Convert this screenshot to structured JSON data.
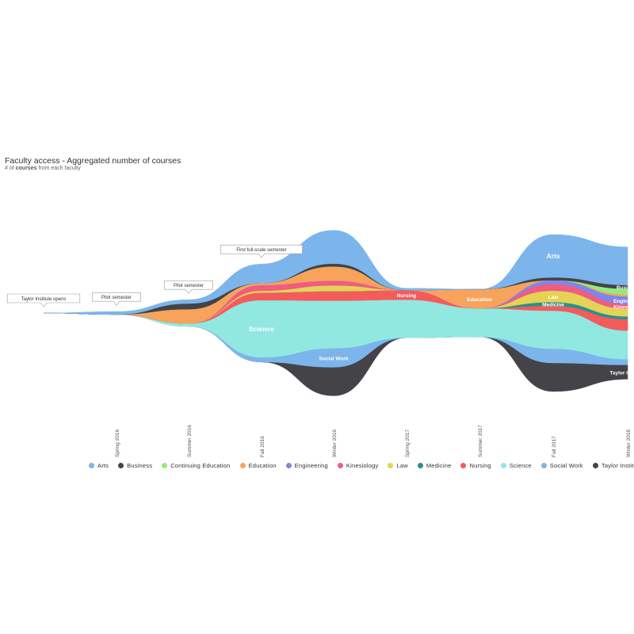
{
  "chart_data": {
    "type": "area",
    "title": "Faculty access - Aggregated number of courses",
    "subtitle_prefix": "# of",
    "subtitle_strong": "courses",
    "subtitle_suffix": "from each faculty",
    "x": [
      "Spring 2016",
      "Summer 2016",
      "Fall 2016",
      "Winter 2016",
      "Spring 2017",
      "Summer 2017",
      "Fall 2017",
      "Winter 2018"
    ],
    "x_tick_labels": [
      "Spring 2016",
      "Summer 2016",
      "Fall 2016",
      "Winter 2016",
      "Spring 2017",
      "Summer 2017",
      "Fall 2017",
      "Winter 2018"
    ],
    "legend_position": "bottom",
    "series": [
      {
        "name": "Taylor Institute",
        "color": "#434348",
        "values": [
          0,
          0,
          0,
          3,
          0,
          0,
          3,
          1.5
        ]
      },
      {
        "name": "Social Work",
        "color": "#7cb5ec",
        "values": [
          0,
          0,
          0.5,
          2,
          0,
          0,
          1.5,
          0.6
        ]
      },
      {
        "name": "Science",
        "color": "#91e8e1",
        "values": [
          0,
          0.3,
          6,
          5,
          4,
          3,
          4,
          3
        ]
      },
      {
        "name": "Nursing",
        "color": "#f45b5b",
        "values": [
          0,
          0,
          0.8,
          1,
          1,
          0,
          0.5,
          1.2
        ]
      },
      {
        "name": "Medicine",
        "color": "#2b908f",
        "values": [
          0,
          0,
          0,
          0,
          0,
          0,
          0.4,
          0.3
        ]
      },
      {
        "name": "Law",
        "color": "#e4d354",
        "values": [
          0,
          0,
          0.2,
          0.6,
          0,
          0,
          1.2,
          0.8
        ]
      },
      {
        "name": "Kinesiology",
        "color": "#f15c80",
        "values": [
          0,
          0,
          0.6,
          0.5,
          0,
          0,
          0.7,
          0.5
        ]
      },
      {
        "name": "Engineering",
        "color": "#8085e9",
        "values": [
          0,
          0,
          0,
          0,
          0,
          0,
          0.4,
          0.8
        ]
      },
      {
        "name": "Education",
        "color": "#f7a35c",
        "values": [
          0,
          1.5,
          0.2,
          1.5,
          0,
          2,
          0,
          0.2
        ]
      },
      {
        "name": "Continuing Education",
        "color": "#90ed7d",
        "values": [
          0,
          0,
          0,
          0,
          0,
          0,
          0,
          0.6
        ]
      },
      {
        "name": "Business",
        "color": "#434348",
        "values": [
          0,
          0.6,
          0,
          0.3,
          0,
          0,
          0.3,
          0.4
        ]
      },
      {
        "name": "Arts",
        "color": "#7cb5ec",
        "values": [
          0.3,
          0.4,
          2,
          3.5,
          0.2,
          0,
          4.5,
          4
        ]
      }
    ],
    "area_labels": [
      {
        "series": "Arts",
        "text": "Arts",
        "at": "Fall 2017"
      },
      {
        "series": "Business",
        "text": "Busi",
        "at": "Winter 2018"
      },
      {
        "series": "Science",
        "text": "Science",
        "at": "Fall 2016"
      },
      {
        "series": "Social Work",
        "text": "Social Work",
        "at": "Winter 2016"
      },
      {
        "series": "Nursing",
        "text": "Nursing",
        "at": "Spring 2017"
      },
      {
        "series": "Education",
        "text": "Education",
        "at": "Summer 2017"
      },
      {
        "series": "Law",
        "text": "Law",
        "at": "Fall 2017"
      },
      {
        "series": "Medicine",
        "text": "Medicine",
        "at": "Fall 2017"
      },
      {
        "series": "Engineering",
        "text": "Engin",
        "at": "Winter 2018"
      },
      {
        "series": "Kinesiology",
        "text": "Kines",
        "at": "Winter 2018"
      },
      {
        "series": "Taylor Institute",
        "text": "Taylor I",
        "at": "Winter 2018"
      }
    ],
    "annotations": [
      {
        "text": "Taylor Institute opens",
        "at": "start"
      },
      {
        "text": "Pilot semester",
        "at": "Spring 2016"
      },
      {
        "text": "Pilot semester",
        "at": "Summer 2016"
      },
      {
        "text": "First full-scale semester",
        "at": "Fall 2016"
      }
    ],
    "legend": [
      "Arts",
      "Business",
      "Continuing Education",
      "Education",
      "Engineering",
      "Kinesiology",
      "Law",
      "Medicine",
      "Nursing",
      "Science",
      "Social Work",
      "Taylor Institute"
    ]
  }
}
